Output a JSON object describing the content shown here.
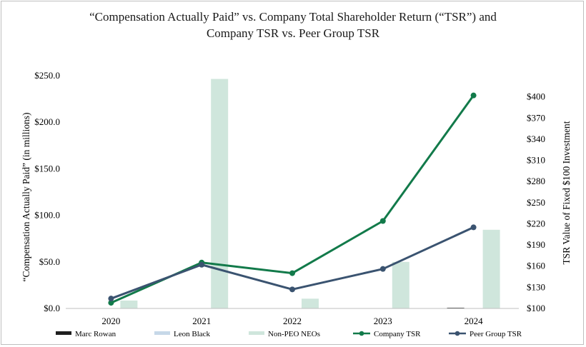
{
  "chart_data": {
    "type": "bar+line",
    "title_line1": "“Compensation Actually Paid” vs. Company Total Shareholder Return (“TSR”) and",
    "title_line2": "Company TSR vs. Peer Group TSR",
    "categories": [
      "2020",
      "2021",
      "2022",
      "2023",
      "2024"
    ],
    "ylabel_left": "“Compensation Actually Paid” (in millions)",
    "ylabel_right": "TSR Value of Fixed $100 Investment",
    "ylim_left": [
      0,
      250
    ],
    "ylim_right": [
      100,
      430
    ],
    "left_ticks": [
      "$0.0",
      "$50.0",
      "$100.0",
      "$150.0",
      "$200.0",
      "$250.0"
    ],
    "left_tick_values": [
      0,
      50,
      100,
      150,
      200,
      250
    ],
    "right_ticks": [
      "$100",
      "$130",
      "$160",
      "$190",
      "$220",
      "$250",
      "$280",
      "$310",
      "$340",
      "$370",
      "$400"
    ],
    "right_tick_values": [
      100,
      130,
      160,
      190,
      220,
      250,
      280,
      310,
      340,
      370,
      400
    ],
    "bar_series": [
      {
        "name": "Marc Rowan",
        "values": [
          0,
          0,
          0,
          0,
          0.8
        ],
        "color": "#1f1f1f"
      },
      {
        "name": "Leon Black",
        "values": [
          0,
          0,
          0,
          0,
          0
        ],
        "color": "#c6d8e8"
      },
      {
        "name": "Non-PEO NEOs",
        "values": [
          8.5,
          246.5,
          10.5,
          50,
          84.5
        ],
        "color": "#cfe6dc"
      }
    ],
    "line_series": [
      {
        "name": "Company TSR",
        "values": [
          108,
          165,
          150,
          224,
          402
        ],
        "color": "#127a4a"
      },
      {
        "name": "Peer Group TSR",
        "values": [
          114,
          162,
          127,
          156,
          215
        ],
        "color": "#3a5370"
      }
    ],
    "legend_position": "bottom"
  }
}
